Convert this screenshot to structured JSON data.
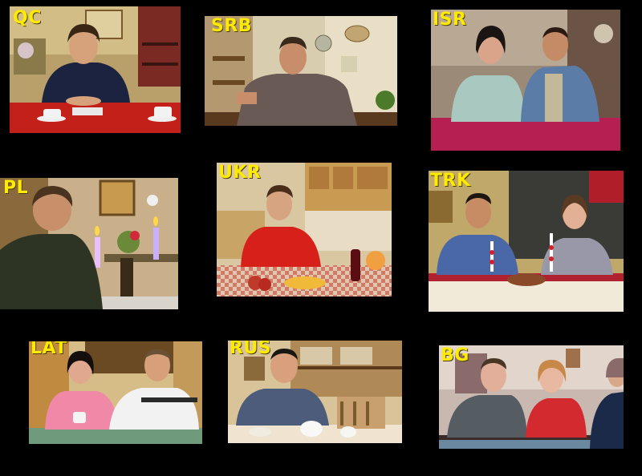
{
  "tiles": [
    {
      "id": "qc",
      "label": "QC"
    },
    {
      "id": "srb",
      "label": "SRB"
    },
    {
      "id": "isr",
      "label": "ISR"
    },
    {
      "id": "pl",
      "label": "PL"
    },
    {
      "id": "ukr",
      "label": "UKR"
    },
    {
      "id": "trk",
      "label": "TRK"
    },
    {
      "id": "lat",
      "label": "LAT"
    },
    {
      "id": "rus",
      "label": "RUS"
    },
    {
      "id": "bg",
      "label": "BG"
    }
  ],
  "colors": {
    "background": "#000000",
    "label": "#ffea00"
  }
}
